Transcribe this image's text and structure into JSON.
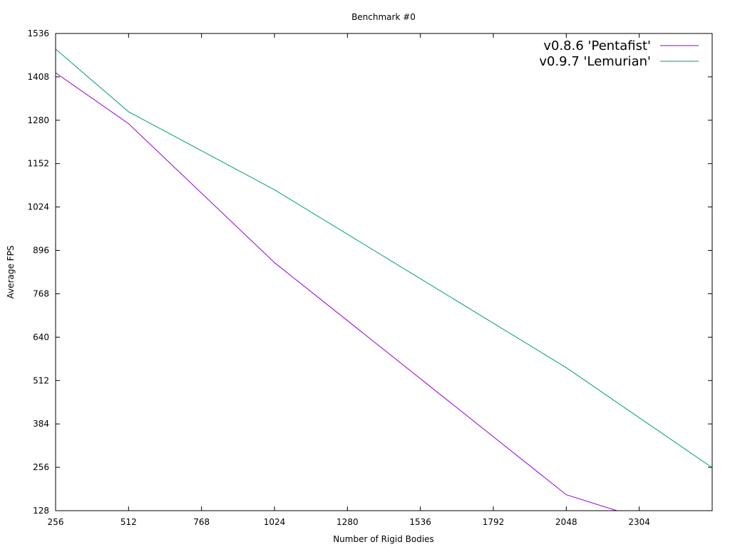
{
  "chart_data": {
    "type": "line",
    "title": "Benchmark #0",
    "xlabel": "Number of Rigid Bodies",
    "ylabel": "Average FPS",
    "xlim": [
      256,
      2560
    ],
    "ylim": [
      128,
      1536
    ],
    "xticks": [
      256,
      512,
      768,
      1024,
      1280,
      1536,
      1792,
      2048,
      2304
    ],
    "yticks": [
      128,
      256,
      384,
      512,
      640,
      768,
      896,
      1024,
      1152,
      1280,
      1408,
      1536
    ],
    "grid": false,
    "legend_position": "top-right",
    "series": [
      {
        "name": "v0.8.6 'Pentafist'",
        "color": "#9400d3",
        "x": [
          256,
          512,
          1024,
          2048,
          2400
        ],
        "y": [
          1420,
          1270,
          860,
          175,
          82
        ]
      },
      {
        "name": "v0.9.7 'Lemurian'",
        "color": "#009e73",
        "x": [
          256,
          512,
          1024,
          2048,
          2560
        ],
        "y": [
          1490,
          1305,
          1075,
          550,
          255
        ]
      }
    ]
  }
}
